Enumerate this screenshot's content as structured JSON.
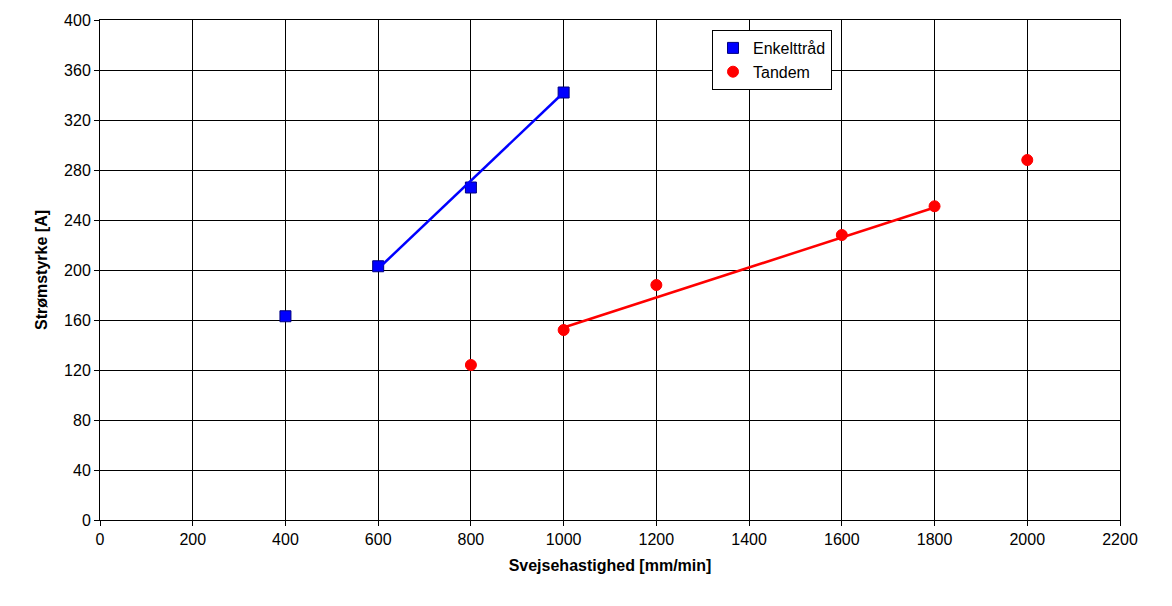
{
  "chart_data": {
    "type": "scatter",
    "x_label": "Svejsehastighed [mm/min]",
    "y_label": "Strømstyrke [A]",
    "xlim": [
      0,
      2200
    ],
    "xticks": [
      0,
      200,
      400,
      600,
      800,
      1000,
      1200,
      1400,
      1600,
      1800,
      2000,
      2200
    ],
    "ylim": [
      0,
      400
    ],
    "yticks": [
      0,
      40,
      80,
      120,
      160,
      200,
      240,
      280,
      320,
      360,
      400
    ],
    "grid": true,
    "legend": "top",
    "series": [
      {
        "name": "Enkelttråd",
        "type": "scatter",
        "color": "#0000ff",
        "marker": "square",
        "x": [
          400,
          600,
          800,
          1000
        ],
        "values": [
          163,
          203,
          266,
          342
        ]
      },
      {
        "type": "line",
        "color": "#0000ff",
        "line_style": "solid",
        "x": [
          600,
          1000
        ],
        "values": [
          201,
          342
        ]
      },
      {
        "name": "Tandem",
        "type": "scatter",
        "color": "#ff0000",
        "marker": "circle",
        "x": [
          800,
          1000,
          1200,
          1600,
          1800,
          2000
        ],
        "values": [
          124,
          152,
          188,
          228,
          251,
          288
        ]
      },
      {
        "type": "line",
        "color": "#ff0000",
        "line_style": "solid",
        "x": [
          1000,
          1800
        ],
        "values": [
          154,
          250
        ]
      }
    ]
  }
}
